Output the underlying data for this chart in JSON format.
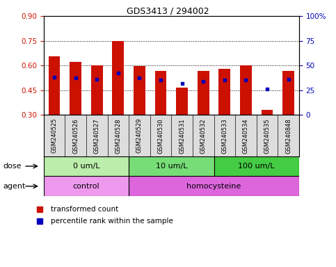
{
  "title": "GDS3413 / 294002",
  "samples": [
    "GSM240525",
    "GSM240526",
    "GSM240527",
    "GSM240528",
    "GSM240529",
    "GSM240530",
    "GSM240531",
    "GSM240532",
    "GSM240533",
    "GSM240534",
    "GSM240535",
    "GSM240848"
  ],
  "red_values": [
    0.655,
    0.62,
    0.6,
    0.75,
    0.595,
    0.565,
    0.465,
    0.565,
    0.58,
    0.6,
    0.33,
    0.565
  ],
  "blue_values": [
    0.53,
    0.525,
    0.515,
    0.555,
    0.525,
    0.51,
    0.49,
    0.505,
    0.51,
    0.51,
    0.455,
    0.515
  ],
  "ylim_left": [
    0.3,
    0.9
  ],
  "ylim_right": [
    0,
    100
  ],
  "y_ticks_left": [
    0.3,
    0.45,
    0.6,
    0.75,
    0.9
  ],
  "y_ticks_right": [
    0,
    25,
    50,
    75,
    100
  ],
  "dotted_lines": [
    0.75,
    0.6,
    0.45
  ],
  "dose_groups": [
    {
      "label": "0 um/L",
      "start": 0,
      "end": 4
    },
    {
      "label": "10 um/L",
      "start": 4,
      "end": 8
    },
    {
      "label": "100 um/L",
      "start": 8,
      "end": 12
    }
  ],
  "dose_colors": [
    "#BBEEAA",
    "#77DD77",
    "#44CC44"
  ],
  "agent_groups": [
    {
      "label": "control",
      "start": 0,
      "end": 4
    },
    {
      "label": "homocysteine",
      "start": 4,
      "end": 12
    }
  ],
  "agent_colors": [
    "#EE99EE",
    "#DD66DD"
  ],
  "bar_color": "#CC1100",
  "dot_color": "#0000BB",
  "bar_width": 0.55,
  "bg_color": "#FFFFFF",
  "legend_items": [
    "transformed count",
    "percentile rank within the sample"
  ],
  "dose_label": "dose",
  "agent_label": "agent",
  "left_tick_color": "#CC1100",
  "right_tick_color": "#0000BB"
}
